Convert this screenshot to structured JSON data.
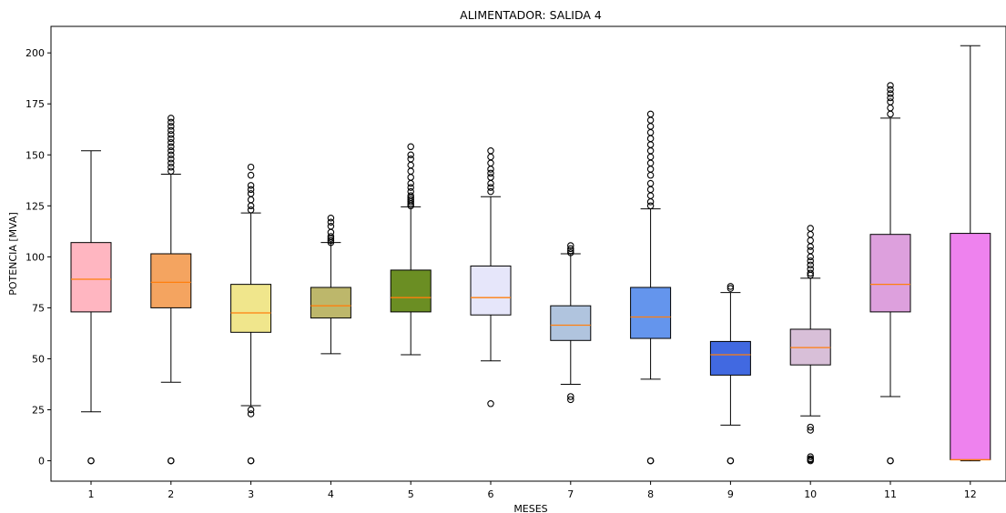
{
  "chart_data": {
    "type": "boxplot",
    "title": "ALIMENTADOR: SALIDA 4",
    "xlabel": "MESES",
    "ylabel": "POTENCIA [MVA]",
    "ylim": [
      -10,
      213
    ],
    "yticks": [
      0,
      25,
      50,
      75,
      100,
      125,
      150,
      175,
      200
    ],
    "grid": false,
    "categories": [
      "1",
      "2",
      "3",
      "4",
      "5",
      "6",
      "7",
      "8",
      "9",
      "10",
      "11",
      "12"
    ],
    "median_color": "#ff7f0e",
    "boxes": [
      {
        "month": "1",
        "color": "#ffb6c1",
        "whislo": 24,
        "q1": 73,
        "med": 89,
        "q3": 107,
        "whishi": 152,
        "fliers": [
          0,
          0
        ]
      },
      {
        "month": "2",
        "color": "#f4a460",
        "whislo": 38.5,
        "q1": 75,
        "med": 87.5,
        "q3": 101.5,
        "whishi": 140.5,
        "fliers": [
          0,
          0,
          142,
          144,
          146,
          148,
          150,
          152,
          154,
          156,
          158,
          160,
          162,
          164,
          166,
          168
        ]
      },
      {
        "month": "3",
        "color": "#f0e68c",
        "whislo": 27,
        "q1": 63,
        "med": 72.5,
        "q3": 86.5,
        "whishi": 121.5,
        "fliers": [
          0,
          0,
          23,
          25,
          123,
          125,
          128,
          131,
          133,
          135,
          140,
          144
        ]
      },
      {
        "month": "4",
        "color": "#bdb76b",
        "whislo": 52.5,
        "q1": 70,
        "med": 76,
        "q3": 85,
        "whishi": 107,
        "fliers": [
          107,
          108,
          109,
          110,
          112,
          115,
          117,
          119
        ]
      },
      {
        "month": "5",
        "color": "#6b8e23",
        "whislo": 52,
        "q1": 73,
        "med": 80,
        "q3": 93.5,
        "whishi": 124.5,
        "fliers": [
          125,
          126,
          127,
          128,
          129,
          130,
          132,
          134,
          136,
          139,
          142,
          145,
          148,
          150,
          154
        ]
      },
      {
        "month": "6",
        "color": "#e6e6fa",
        "whislo": 49,
        "q1": 71.5,
        "med": 80,
        "q3": 95.5,
        "whishi": 129.5,
        "fliers": [
          28,
          132,
          134,
          136,
          139,
          141,
          143,
          146,
          149,
          152
        ]
      },
      {
        "month": "7",
        "color": "#b0c4de",
        "whislo": 37.5,
        "q1": 59,
        "med": 66.5,
        "q3": 76,
        "whishi": 101.5,
        "fliers": [
          30,
          31.5,
          102,
          103,
          104,
          105.5
        ]
      },
      {
        "month": "8",
        "color": "#6495ed",
        "whislo": 40,
        "q1": 60,
        "med": 70.5,
        "q3": 85,
        "whishi": 123.5,
        "fliers": [
          0,
          0,
          125,
          127,
          130,
          133,
          136,
          140,
          143,
          146,
          149,
          152,
          155,
          158,
          161,
          164,
          167,
          170
        ]
      },
      {
        "month": "9",
        "color": "#4169e1",
        "whislo": 17.5,
        "q1": 42,
        "med": 52,
        "q3": 58.5,
        "whishi": 82.5,
        "fliers": [
          0,
          0,
          84.5,
          85.5
        ]
      },
      {
        "month": "10",
        "color": "#d8bfd8",
        "whislo": 22,
        "q1": 47,
        "med": 55.5,
        "q3": 64.5,
        "whishi": 89.5,
        "fliers": [
          0,
          0.5,
          1,
          2,
          15,
          16.5,
          91,
          92,
          94,
          96,
          98,
          100,
          103,
          105,
          108,
          111,
          114
        ]
      },
      {
        "month": "11",
        "color": "#dda0dd",
        "whislo": 31.5,
        "q1": 73,
        "med": 86.5,
        "q3": 111,
        "whishi": 168,
        "fliers": [
          0,
          0,
          170,
          173,
          176,
          178,
          180,
          182,
          184
        ]
      },
      {
        "month": "12",
        "color": "#ee82ee",
        "whislo": 0,
        "q1": 0.5,
        "med": 0.5,
        "q3": 111.5,
        "whishi": 203.5,
        "fliers": []
      }
    ]
  }
}
